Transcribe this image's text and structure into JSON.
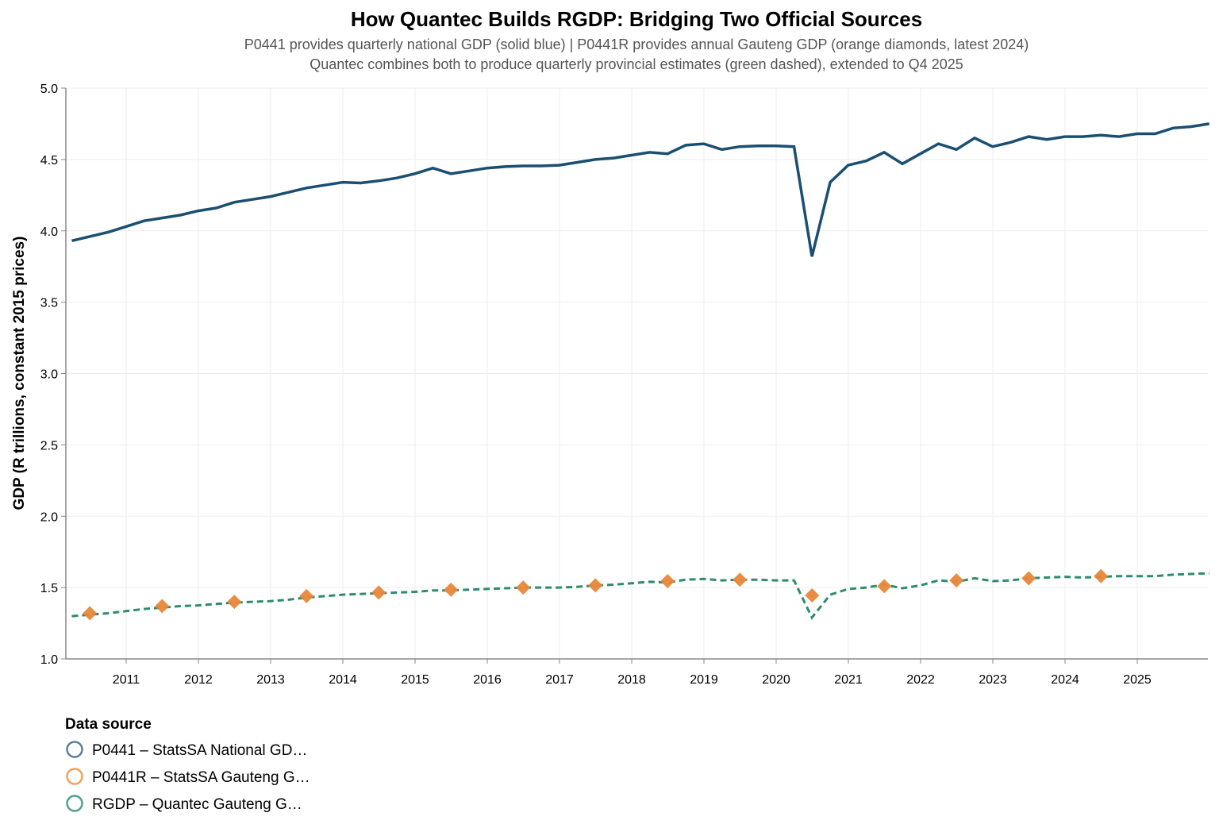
{
  "chart_data": {
    "type": "line",
    "title": "How Quantec Builds RGDP: Bridging Two Official Sources",
    "subtitle": [
      "P0441 provides quarterly national GDP (solid blue) | P0441R provides annual Gauteng GDP (orange diamonds, latest 2024)",
      "Quantec combines both to produce quarterly provincial estimates (green dashed), extended to Q4 2025"
    ],
    "xlabel": "",
    "ylabel": "GDP (R trillions, constant 2015 prices)",
    "ylim": [
      1.0,
      5.0
    ],
    "yticks": [
      "1.0",
      "1.5",
      "2.0",
      "2.5",
      "3.0",
      "3.5",
      "4.0",
      "4.5",
      "5.0"
    ],
    "xticks": [
      "2011",
      "2012",
      "2013",
      "2014",
      "2015",
      "2016",
      "2017",
      "2018",
      "2019",
      "2020",
      "2021",
      "2022",
      "2023",
      "2024",
      "2025"
    ],
    "grid": true,
    "legend": {
      "title": "Data source",
      "placement": "bottom-left",
      "entries": [
        "P0441 – StatsSA National GD…",
        "P0441R – StatsSA Gauteng G…",
        "RGDP – Quantec Gauteng G…"
      ]
    },
    "series": [
      {
        "name": "P0441 – StatsSA National GD…",
        "color": "#1b4f72",
        "style": "solid line",
        "frequency": "quarterly",
        "start": "2010Q1",
        "values": [
          3.93,
          3.96,
          3.99,
          4.03,
          4.07,
          4.09,
          4.11,
          4.14,
          4.16,
          4.2,
          4.22,
          4.24,
          4.27,
          4.3,
          4.32,
          4.34,
          4.335,
          4.35,
          4.37,
          4.4,
          4.44,
          4.4,
          4.42,
          4.44,
          4.45,
          4.455,
          4.455,
          4.46,
          4.48,
          4.5,
          4.51,
          4.53,
          4.55,
          4.54,
          4.6,
          4.61,
          4.57,
          4.59,
          4.595,
          4.595,
          4.59,
          3.82,
          4.34,
          4.46,
          4.49,
          4.55,
          4.47,
          4.54,
          4.61,
          4.57,
          4.65,
          4.59,
          4.62,
          4.66,
          4.64,
          4.66,
          4.66,
          4.67,
          4.66,
          4.68,
          4.68,
          4.72,
          4.73,
          4.75
        ]
      },
      {
        "name": "P0441R – StatsSA Gauteng G…",
        "color": "#e8873a",
        "style": "diamond markers",
        "frequency": "annual",
        "x": [
          "2010",
          "2011",
          "2012",
          "2013",
          "2014",
          "2015",
          "2016",
          "2017",
          "2018",
          "2019",
          "2020",
          "2021",
          "2022",
          "2023",
          "2024"
        ],
        "values": [
          1.32,
          1.37,
          1.4,
          1.44,
          1.465,
          1.485,
          1.5,
          1.515,
          1.545,
          1.555,
          1.445,
          1.51,
          1.55,
          1.565,
          1.58
        ]
      },
      {
        "name": "RGDP – Quantec Gauteng G…",
        "color": "#2e8b6f",
        "style": "dashed line",
        "frequency": "quarterly",
        "start": "2010Q1",
        "values": [
          1.3,
          1.31,
          1.32,
          1.335,
          1.35,
          1.36,
          1.37,
          1.375,
          1.385,
          1.395,
          1.4,
          1.405,
          1.415,
          1.43,
          1.44,
          1.45,
          1.455,
          1.46,
          1.465,
          1.47,
          1.48,
          1.48,
          1.485,
          1.49,
          1.495,
          1.5,
          1.5,
          1.5,
          1.505,
          1.515,
          1.52,
          1.53,
          1.54,
          1.535,
          1.555,
          1.56,
          1.55,
          1.555,
          1.555,
          1.55,
          1.55,
          1.29,
          1.45,
          1.49,
          1.5,
          1.52,
          1.495,
          1.515,
          1.55,
          1.54,
          1.565,
          1.545,
          1.55,
          1.565,
          1.57,
          1.575,
          1.57,
          1.575,
          1.58,
          1.58,
          1.58,
          1.59,
          1.595,
          1.6
        ]
      }
    ]
  }
}
